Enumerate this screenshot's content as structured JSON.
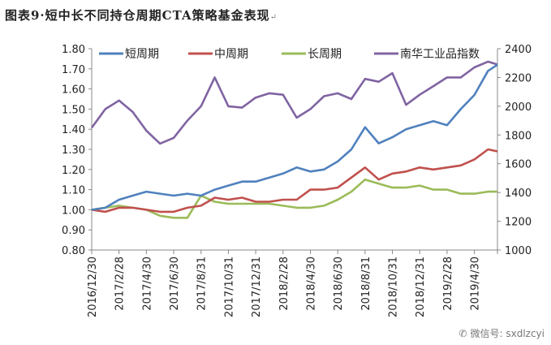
{
  "title": "图表9·短中长不同持仓周期CTA策略基金表现",
  "title_mark": "↵",
  "watermark": {
    "icon": "wechat-icon",
    "text": "微信号: sxdlzcyi"
  },
  "chart_data": {
    "type": "line",
    "title": "图表9·短中长不同持仓周期CTA策略基金表现",
    "x": [
      "2016/12/30",
      "2017/1/31",
      "2017/2/28",
      "2017/3/31",
      "2017/4/30",
      "2017/5/31",
      "2017/6/30",
      "2017/7/31",
      "2017/8/31",
      "2017/9/30",
      "2017/10/31",
      "2017/11/30",
      "2017/12/31",
      "2018/1/31",
      "2018/2/28",
      "2018/3/31",
      "2018/4/30",
      "2018/5/31",
      "2018/6/30",
      "2018/7/31",
      "2018/8/31",
      "2018/9/30",
      "2018/10/31",
      "2018/11/30",
      "2018/12/31",
      "2019/1/31",
      "2019/2/28",
      "2019/3/31",
      "2019/4/30",
      "2019/5/31",
      "2019/6/20"
    ],
    "xtick_labels": [
      "2016/12/30",
      "2017/2/28",
      "2017/4/30",
      "2017/6/30",
      "2017/8/31",
      "2017/10/31",
      "2017/12/31",
      "2018/2/28",
      "2018/4/30",
      "2018/6/30",
      "2018/8/31",
      "2018/10/31",
      "2018/12/31",
      "2019/2/28",
      "2019/4/30"
    ],
    "y_left": {
      "range": [
        0.8,
        1.8
      ],
      "ticks": [
        "0.80",
        "0.90",
        "1.00",
        "1.10",
        "1.20",
        "1.30",
        "1.40",
        "1.50",
        "1.60",
        "1.70",
        "1.80"
      ]
    },
    "y_right": {
      "range": [
        1000,
        2400
      ],
      "ticks": [
        "1000",
        "1200",
        "1400",
        "1600",
        "1800",
        "2000",
        "2200",
        "2400"
      ]
    },
    "legend_position": "top",
    "grid": false,
    "series": [
      {
        "name": "短周期",
        "axis": "left",
        "color": "#4f81bd",
        "values": [
          1.0,
          1.01,
          1.05,
          1.07,
          1.09,
          1.08,
          1.07,
          1.08,
          1.07,
          1.1,
          1.12,
          1.14,
          1.14,
          1.16,
          1.18,
          1.21,
          1.19,
          1.2,
          1.24,
          1.3,
          1.41,
          1.33,
          1.36,
          1.4,
          1.42,
          1.44,
          1.42,
          1.5,
          1.57,
          1.69,
          1.72
        ]
      },
      {
        "name": "中周期",
        "axis": "left",
        "color": "#c0504d",
        "values": [
          1.0,
          0.99,
          1.01,
          1.01,
          1.0,
          0.99,
          0.99,
          1.01,
          1.02,
          1.06,
          1.05,
          1.06,
          1.04,
          1.04,
          1.05,
          1.05,
          1.1,
          1.1,
          1.11,
          1.16,
          1.21,
          1.15,
          1.18,
          1.19,
          1.21,
          1.2,
          1.21,
          1.22,
          1.25,
          1.3,
          1.29
        ]
      },
      {
        "name": "长周期",
        "axis": "left",
        "color": "#9bbb59",
        "values": [
          1.0,
          1.01,
          1.02,
          1.01,
          1.0,
          0.97,
          0.96,
          0.96,
          1.07,
          1.04,
          1.03,
          1.03,
          1.03,
          1.03,
          1.02,
          1.01,
          1.01,
          1.02,
          1.05,
          1.09,
          1.15,
          1.13,
          1.11,
          1.11,
          1.12,
          1.1,
          1.1,
          1.08,
          1.08,
          1.09,
          1.09
        ]
      },
      {
        "name": "南华工业品指数",
        "axis": "right",
        "color": "#8064a2",
        "values": [
          1850,
          1980,
          2040,
          1960,
          1830,
          1740,
          1780,
          1900,
          2000,
          2200,
          2000,
          1990,
          2060,
          2090,
          2080,
          1920,
          1980,
          2070,
          2090,
          2050,
          2190,
          2170,
          2230,
          2010,
          2080,
          2140,
          2200,
          2200,
          2270,
          2310,
          2290
        ]
      }
    ]
  }
}
